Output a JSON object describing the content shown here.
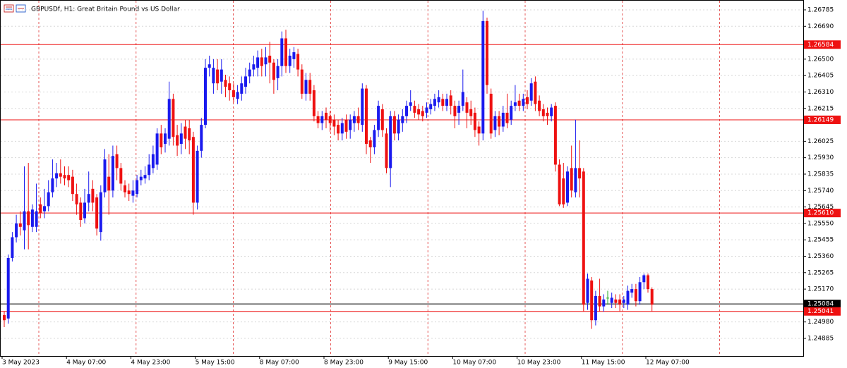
{
  "chart_data": {
    "type": "candlestick",
    "title": "GBPUSDf, H1:  Great Britain Pound vs US Dollar",
    "categories": [
      "3 May 2023",
      null,
      null,
      null,
      null,
      null,
      null,
      null,
      null,
      null,
      null,
      null,
      null,
      null,
      null,
      null,
      "4 May 07:00",
      null,
      null,
      null,
      null,
      null,
      null,
      null,
      null,
      null,
      null,
      null,
      null,
      null,
      null,
      null,
      "4 May 23:00",
      null,
      null,
      null,
      null,
      null,
      null,
      null,
      null,
      null,
      null,
      null,
      null,
      null,
      null,
      null,
      "5 May 15:00",
      null,
      null,
      null,
      null,
      null,
      null,
      null,
      null,
      null,
      null,
      null,
      null,
      null,
      null,
      null,
      "8 May 07:00",
      null,
      null,
      null,
      null,
      null,
      null,
      null,
      null,
      null,
      null,
      null,
      null,
      null,
      null,
      null,
      "8 May 23:00",
      null,
      null,
      null,
      null,
      null,
      null,
      null,
      null,
      null,
      null,
      null,
      null,
      null,
      null,
      null,
      "9 May 15:00",
      null,
      null,
      null,
      null,
      null,
      null,
      null,
      null,
      null,
      null,
      null,
      null,
      null,
      null,
      null,
      "10 May 07:00",
      null,
      null,
      null,
      null,
      null,
      null,
      null,
      null,
      null,
      null,
      null,
      null,
      null,
      null,
      null,
      "10 May 23:00",
      null,
      null,
      null,
      null,
      null,
      null,
      null,
      null,
      null,
      null,
      null,
      null,
      null,
      null,
      null,
      "11 May 15:00",
      null,
      null,
      null,
      null,
      null,
      null,
      null,
      null,
      null,
      null,
      null,
      null,
      null,
      null,
      null,
      "12 May 07:00",
      null
    ],
    "open": [
      1.2502,
      1.25,
      1.2535,
      1.2547,
      1.2555,
      1.2551,
      1.2562,
      1.2553,
      1.2553,
      1.2566,
      1.2562,
      1.2565,
      1.2573,
      1.2581,
      1.2584,
      1.2583,
      1.2583,
      1.2582,
      1.2572,
      1.2567,
      1.2558,
      1.2567,
      1.2575,
      1.257,
      1.255,
      1.2573,
      1.2582,
      1.2574,
      1.2595,
      1.2587,
      1.2577,
      1.2574,
      1.2571,
      1.2572,
      1.258,
      1.2581,
      1.2583,
      1.2587,
      1.2589,
      1.2607,
      1.2601,
      1.2604,
      1.2627,
      1.2606,
      1.2601,
      1.2611,
      1.261,
      1.2605,
      1.2567,
      1.2597,
      1.2612,
      1.2645,
      1.2636,
      1.2644,
      1.2637,
      1.2638,
      1.2636,
      1.2632,
      1.2627,
      1.263,
      1.2634,
      1.264,
      1.2644,
      1.2645,
      1.2651,
      1.2647,
      1.2652,
      1.2648,
      1.2639,
      1.2646,
      1.2662,
      1.2646,
      1.265,
      1.2653,
      1.2644,
      1.263,
      1.2638,
      1.2632,
      1.2617,
      1.2613,
      1.2619,
      1.2617,
      1.2615,
      1.2612,
      1.2607,
      1.2615,
      1.2609,
      1.2613,
      1.2617,
      1.2612,
      1.2633,
      1.2603,
      1.2599,
      1.2609,
      1.2621,
      1.2607,
      1.2587,
      1.2617,
      1.2607,
      1.2613,
      1.2617,
      1.2623,
      1.2623,
      1.2621,
      1.262,
      1.2619,
      1.2621,
      1.2623,
      1.2625,
      1.2627,
      1.2623,
      1.2629,
      1.2623,
      1.2619,
      1.2623,
      1.2625,
      1.2621,
      1.2619,
      1.2611,
      1.2607,
      1.2672,
      1.263,
      1.2609,
      1.2617,
      1.2611,
      1.2619,
      1.2615,
      1.2623,
      1.2626,
      1.2623,
      1.2628,
      1.2626,
      1.2637,
      1.2626,
      1.2621,
      1.2619,
      1.2617,
      1.2623,
      1.2589,
      1.2581,
      1.2567,
      1.2587,
      1.2573,
      1.2587,
      1.2585,
      1.2509,
      1.2522,
      1.2499,
      1.2513,
      1.2507,
      1.2512,
      1.2509,
      1.2511,
      1.2511,
      1.2509,
      1.2508,
      1.2515,
      1.2517,
      1.251,
      1.2521,
      1.2525,
      1.2517
    ],
    "high": [
      1.2504,
      1.2537,
      1.255,
      1.256,
      1.2562,
      1.2588,
      1.259,
      1.2566,
      1.2578,
      1.257,
      1.2575,
      1.258,
      1.2592,
      1.259,
      1.2592,
      1.2588,
      1.2588,
      1.2586,
      1.2578,
      1.257,
      1.2575,
      1.2585,
      1.258,
      1.2572,
      1.2577,
      1.2598,
      1.2595,
      1.26,
      1.26,
      1.259,
      1.258,
      1.2578,
      1.258,
      1.2583,
      1.2586,
      1.2588,
      1.2595,
      1.26,
      1.261,
      1.2612,
      1.261,
      1.2637,
      1.263,
      1.2612,
      1.2613,
      1.2615,
      1.2615,
      1.2608,
      1.26,
      1.2616,
      1.265,
      1.2652,
      1.265,
      1.265,
      1.265,
      1.2641,
      1.264,
      1.2636,
      1.2635,
      1.264,
      1.2645,
      1.2648,
      1.2652,
      1.2655,
      1.2656,
      1.2657,
      1.266,
      1.265,
      1.265,
      1.2666,
      1.2667,
      1.2656,
      1.2657,
      1.2656,
      1.2647,
      1.2642,
      1.2642,
      1.2635,
      1.262,
      1.262,
      1.2622,
      1.262,
      1.2618,
      1.2615,
      1.2616,
      1.2618,
      1.2618,
      1.262,
      1.2622,
      1.2636,
      1.2635,
      1.2605,
      1.2612,
      1.2626,
      1.2624,
      1.261,
      1.262,
      1.262,
      1.2618,
      1.2621,
      1.2626,
      1.2632,
      1.2626,
      1.2624,
      1.2623,
      1.2625,
      1.2627,
      1.263,
      1.2632,
      1.263,
      1.263,
      1.2632,
      1.2626,
      1.2626,
      1.2644,
      1.2628,
      1.2626,
      1.2622,
      1.2614,
      1.2678,
      1.2674,
      1.2633,
      1.262,
      1.262,
      1.2623,
      1.263,
      1.2626,
      1.2635,
      1.263,
      1.263,
      1.2632,
      1.2639,
      1.264,
      1.2629,
      1.2624,
      1.2622,
      1.2624,
      1.2625,
      1.2592,
      1.259,
      1.2588,
      1.26,
      1.2615,
      1.2603,
      1.2587,
      1.2526,
      1.2524,
      1.2516,
      1.2523,
      1.2514,
      1.2516,
      1.2515,
      1.2514,
      1.2514,
      1.2513,
      1.2519,
      1.252,
      1.252,
      1.2524,
      1.2526,
      1.2526,
      1.2518
    ],
    "low": [
      1.2495,
      1.2497,
      1.2533,
      1.2544,
      1.2548,
      1.254,
      1.254,
      1.255,
      1.255,
      1.2558,
      1.2558,
      1.2562,
      1.257,
      1.2576,
      1.2578,
      1.2577,
      1.2576,
      1.2568,
      1.256,
      1.2553,
      1.2555,
      1.2562,
      1.2562,
      1.2548,
      1.2545,
      1.257,
      1.256,
      1.257,
      1.258,
      1.2574,
      1.257,
      1.2568,
      1.2567,
      1.257,
      1.2577,
      1.2578,
      1.258,
      1.2584,
      1.2586,
      1.2595,
      1.2596,
      1.26,
      1.26,
      1.2594,
      1.2595,
      1.2598,
      1.2595,
      1.256,
      1.2563,
      1.2593,
      1.261,
      1.264,
      1.263,
      1.2632,
      1.263,
      1.2628,
      1.2626,
      1.2625,
      1.2624,
      1.2626,
      1.263,
      1.2636,
      1.264,
      1.264,
      1.264,
      1.264,
      1.2636,
      1.263,
      1.2632,
      1.264,
      1.2642,
      1.2642,
      1.2645,
      1.264,
      1.2627,
      1.2626,
      1.2626,
      1.2614,
      1.261,
      1.2609,
      1.261,
      1.2608,
      1.2606,
      1.2603,
      1.2603,
      1.2604,
      1.2604,
      1.2608,
      1.2609,
      1.2608,
      1.2595,
      1.259,
      1.2595,
      1.2605,
      1.2605,
      1.2584,
      1.2576,
      1.2603,
      1.2603,
      1.2608,
      1.2613,
      1.262,
      1.2616,
      1.2615,
      1.2614,
      1.2616,
      1.2618,
      1.262,
      1.2622,
      1.262,
      1.262,
      1.2618,
      1.261,
      1.2612,
      1.262,
      1.261,
      1.2612,
      1.2605,
      1.26,
      1.2603,
      1.263,
      1.2604,
      1.2605,
      1.2606,
      1.2608,
      1.261,
      1.2612,
      1.262,
      1.262,
      1.262,
      1.2621,
      1.2623,
      1.262,
      1.2617,
      1.2614,
      1.2612,
      1.2614,
      1.2585,
      1.2565,
      1.2564,
      1.2565,
      1.257,
      1.257,
      1.257,
      1.2504,
      1.2505,
      1.2494,
      1.2496,
      1.2504,
      1.2504,
      1.2508,
      1.2506,
      1.2506,
      1.2504,
      1.2506,
      1.2505,
      1.2512,
      1.2507,
      1.2508,
      1.2517,
      1.2515,
      1.2504
    ],
    "close": [
      1.2499,
      1.2535,
      1.2547,
      1.2555,
      1.2553,
      1.2562,
      1.2554,
      1.2563,
      1.2562,
      1.2561,
      1.2565,
      1.2573,
      1.2581,
      1.2584,
      1.2582,
      1.2581,
      1.258,
      1.2572,
      1.2566,
      1.2557,
      1.2567,
      1.2572,
      1.2567,
      1.2552,
      1.2573,
      1.2592,
      1.2574,
      1.2594,
      1.2587,
      1.2578,
      1.2573,
      1.2572,
      1.2574,
      1.258,
      1.2582,
      1.2583,
      1.2589,
      1.2595,
      1.2607,
      1.2599,
      1.2607,
      1.2627,
      1.2605,
      1.26,
      1.2607,
      1.2604,
      1.2603,
      1.2567,
      1.2597,
      1.2612,
      1.2645,
      1.2647,
      1.2645,
      1.2636,
      1.2644,
      1.2634,
      1.2632,
      1.2628,
      1.2631,
      1.2636,
      1.264,
      1.2644,
      1.2647,
      1.2651,
      1.2646,
      1.2651,
      1.2648,
      1.2638,
      1.2646,
      1.2662,
      1.2646,
      1.2652,
      1.2654,
      1.2644,
      1.263,
      1.2638,
      1.263,
      1.2617,
      1.2613,
      1.2617,
      1.2615,
      1.2613,
      1.2611,
      1.2607,
      1.2613,
      1.2608,
      1.2615,
      1.2617,
      1.2613,
      1.2633,
      1.2601,
      1.2599,
      1.2609,
      1.2623,
      1.2609,
      1.2587,
      1.2617,
      1.2607,
      1.2615,
      1.2617,
      1.2623,
      1.2625,
      1.2619,
      1.2618,
      1.2617,
      1.2622,
      1.2624,
      1.2627,
      1.2628,
      1.2623,
      1.2627,
      1.2623,
      1.2617,
      1.2623,
      1.2631,
      1.2619,
      1.2617,
      1.2609,
      1.2607,
      1.2672,
      1.2635,
      1.2607,
      1.2617,
      1.2611,
      1.2619,
      1.2613,
      1.2623,
      1.2625,
      1.2623,
      1.2627,
      1.2624,
      1.2636,
      1.2624,
      1.262,
      1.2617,
      1.2617,
      1.2622,
      1.2589,
      1.2566,
      1.2566,
      1.2585,
      1.2574,
      1.2587,
      1.2581,
      1.2508,
      1.2523,
      1.2499,
      1.2513,
      1.2507,
      1.2511,
      1.2512,
      1.2512,
      1.2509,
      1.2508,
      1.2511,
      1.2516,
      1.2517,
      1.251,
      1.2521,
      1.2525,
      1.2517,
      1.2508
    ],
    "up_color": "#1a1aee",
    "down_color": "#ee1111",
    "doji_color": "#22aa22",
    "ylim": [
      1.24783,
      1.26842
    ],
    "yticks": [
      1.26785,
      {
        "value": 1.2669,
        "label": "1.26690"
      },
      {
        "value": 1.265,
        "label": "1.26500"
      },
      1.26405,
      {
        "value": 1.2631,
        "label": "1.26310"
      },
      1.26215,
      1.26025,
      {
        "value": 1.2593,
        "label": "1.25930"
      },
      1.25835,
      {
        "value": 1.2574,
        "label": "1.25740"
      },
      1.25645,
      {
        "value": 1.2555,
        "label": "1.25550"
      },
      1.25455,
      {
        "value": 1.2536,
        "label": "1.25360"
      },
      1.25265,
      {
        "value": 1.2517,
        "label": "1.25170"
      },
      {
        "value": 1.2498,
        "label": "1.24980"
      },
      1.24885
    ],
    "grid": true,
    "levels": [
      {
        "price": 1.26584,
        "color": "#ee1111"
      },
      {
        "price": 1.26149,
        "color": "#ee1111"
      },
      {
        "price": {
          "value": 1.2561,
          "label": "1.25610"
        },
        "color": "#ee1111"
      },
      {
        "price": 1.25084,
        "color": "#000000"
      },
      {
        "price": 1.25041,
        "color": "#ee1111"
      }
    ]
  }
}
